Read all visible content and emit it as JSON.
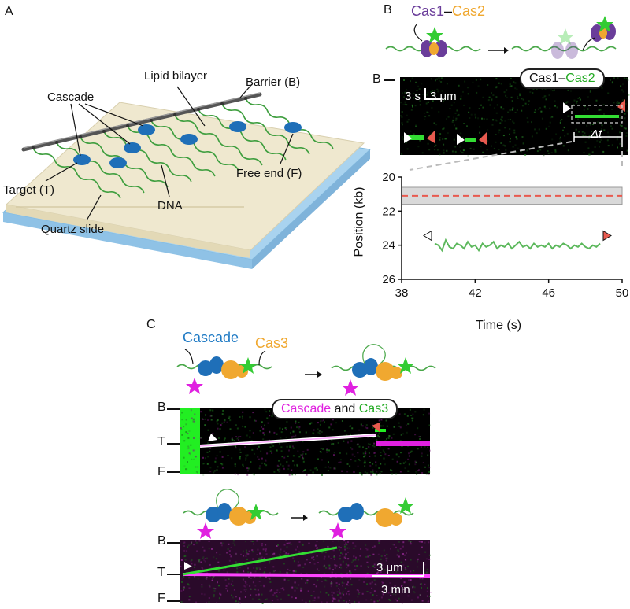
{
  "panels": {
    "A": {
      "letter": "A",
      "labels": {
        "lipid": "Lipid bilayer",
        "barrier": "Barrier (B)",
        "cascade": "Cascade",
        "target": "Target (T)",
        "dna": "DNA",
        "free_end": "Free end (F)",
        "quartz": "Quartz slide"
      }
    },
    "B_top": {
      "letter": "B",
      "cas1": "Cas1",
      "dash": "–",
      "cas2": "Cas2"
    },
    "B_kymo": {
      "letter": "B",
      "pill_a": "Cas1",
      "pill_dash": "–",
      "pill_b": "Cas2",
      "scale_time": "3 s",
      "scale_dist": "3 μm",
      "delta_t": "Δt"
    },
    "C": {
      "letter": "C",
      "cascade": "Cascade",
      "cas3": "Cas3",
      "pill_a": "Cascade",
      "pill_and": " and ",
      "pill_b": "Cas3",
      "row_labels_top": [
        "B",
        "T",
        "F"
      ],
      "row_labels_bottom": [
        "B",
        "T",
        "F"
      ],
      "scale_dist": "3 μm",
      "scale_time": "3 min"
    },
    "colors": {
      "cascade": "#1f7ac4",
      "cas3": "#f0a830",
      "cas1": "#6a3d9a",
      "cas2": "#f0a830",
      "green": "#33cc33",
      "magenta": "#e020e0",
      "red_marker": "#e85a4f"
    }
  },
  "chart_data": {
    "type": "line",
    "title": "",
    "xlabel": "Time (s)",
    "ylabel": "Position (kb)",
    "xlim": [
      38,
      50
    ],
    "ylim": [
      26,
      20
    ],
    "xticks": [
      "38",
      "42",
      "46",
      "50"
    ],
    "yticks": [
      "20",
      "22",
      "24",
      "26"
    ],
    "band": [
      20.6,
      21.6
    ],
    "target_line": 21.1,
    "series": [
      {
        "x": [
          39.8,
          40.0,
          40.2,
          40.4,
          40.6,
          40.8,
          41.0,
          41.2,
          41.4,
          41.6,
          41.8,
          42.0,
          42.2,
          42.4,
          42.6,
          42.8,
          43.0,
          43.2,
          43.4,
          43.6,
          43.8,
          44.0,
          44.2,
          44.4,
          44.6,
          44.8,
          45.0,
          45.2,
          45.4,
          45.6,
          45.8,
          46.0,
          46.2,
          46.4,
          46.6,
          46.8,
          47.0,
          47.2,
          47.4,
          47.6,
          47.8,
          48.0,
          48.2,
          48.4,
          48.6,
          48.8
        ],
        "values": [
          23.9,
          24.0,
          24.3,
          23.7,
          24.1,
          24.2,
          23.9,
          24.0,
          24.2,
          23.8,
          24.1,
          24.0,
          24.3,
          23.9,
          24.1,
          24.0,
          23.8,
          24.2,
          24.0,
          24.1,
          23.9,
          24.2,
          24.0,
          23.8,
          24.1,
          24.0,
          24.2,
          23.9,
          24.1,
          24.0,
          24.1,
          23.9,
          24.2,
          24.0,
          24.1,
          23.9,
          24.0,
          24.2,
          24.0,
          24.1,
          23.9,
          24.1,
          24.2,
          24.0,
          24.1,
          23.9
        ]
      }
    ]
  }
}
